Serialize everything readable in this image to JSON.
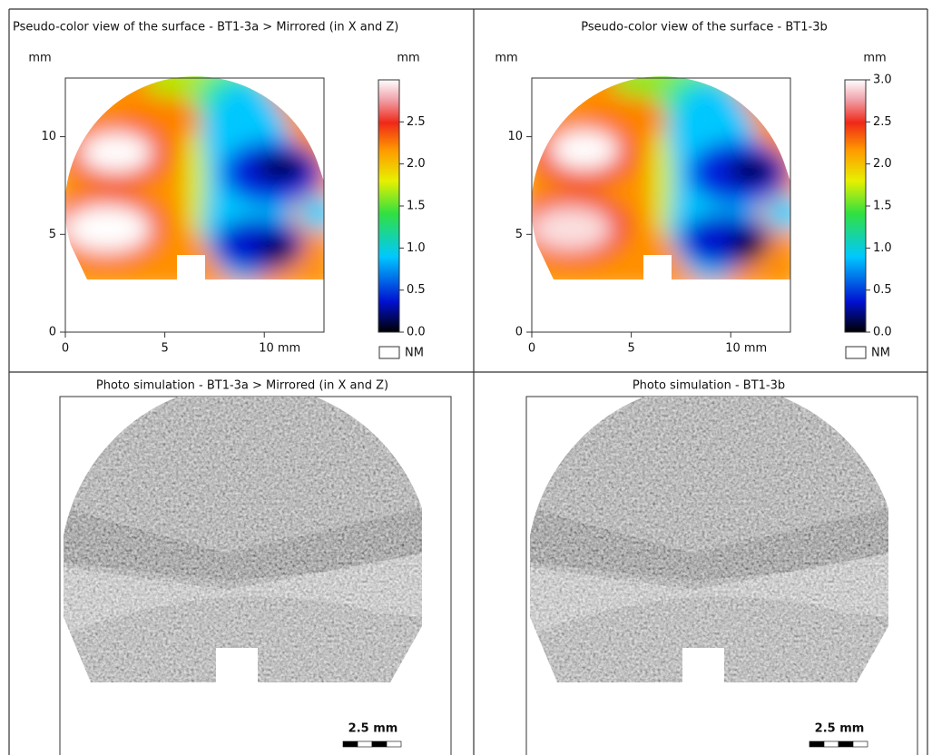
{
  "panels": [
    {
      "title": "Pseudo-color view of the surface - BT1-3a > Mirrored (in X and Z)",
      "y_unit": "mm",
      "xlim": [
        0,
        13
      ],
      "ylim": [
        0,
        13
      ],
      "xticks": [
        0,
        5,
        {
          "value": 10,
          "label": "10 mm"
        }
      ],
      "yticks": [
        0,
        5,
        10
      ],
      "colorbar": {
        "unit": "mm",
        "lim": [
          0,
          3
        ],
        "ticks": [
          {
            "value": 0,
            "label": "0.0"
          },
          0.5,
          {
            "value": 1,
            "label": "1.0"
          },
          1.5,
          {
            "value": 2,
            "label": "2.0"
          },
          2.5
        ]
      },
      "nm_label": "NM"
    },
    {
      "title": "Pseudo-color view of the surface - BT1-3b",
      "y_unit": "mm",
      "xlim": [
        0,
        13
      ],
      "ylim": [
        0,
        13
      ],
      "xticks": [
        0,
        5,
        {
          "value": 10,
          "label": "10 mm"
        }
      ],
      "yticks": [
        0,
        5,
        10
      ],
      "colorbar": {
        "unit": "mm",
        "lim": [
          0,
          3
        ],
        "ticks": [
          {
            "value": 0,
            "label": "0.0"
          },
          0.5,
          {
            "value": 1,
            "label": "1.0"
          },
          1.5,
          {
            "value": 2,
            "label": "2.0"
          },
          2.5,
          {
            "value": 3,
            "label": "3.0"
          }
        ]
      },
      "nm_label": "NM"
    },
    {
      "title": "Photo simulation - BT1-3a > Mirrored (in X and Z)",
      "scale_bar": "2.5 mm"
    },
    {
      "title": "Photo simulation - BT1-3b",
      "scale_bar": "2.5 mm"
    }
  ]
}
